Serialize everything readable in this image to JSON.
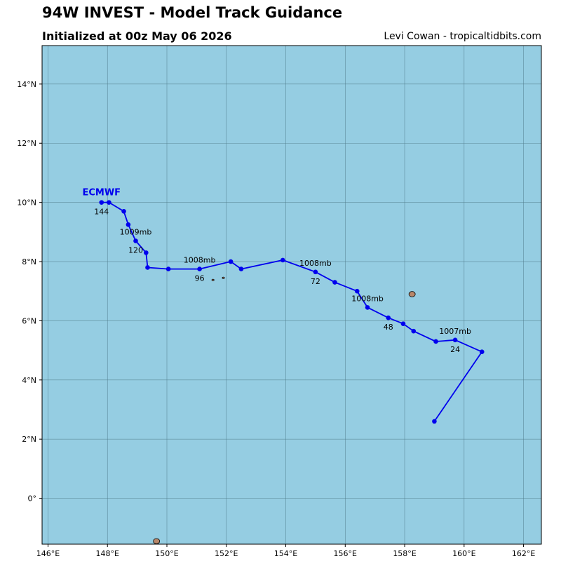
{
  "header": {
    "title": "94W INVEST - Model Track Guidance",
    "subtitle": "Initialized at 00z May 06 2026",
    "credit": "Levi Cowan - tropicaltidbits.com"
  },
  "colors": {
    "ocean": "#95cde2",
    "land": "#b8876a",
    "track": "#0000ee",
    "grid": "#4f7b8a",
    "model_label": "#0000ee"
  },
  "chart_data": {
    "type": "map-track",
    "lon_range": [
      145.8,
      162.6
    ],
    "lat_range": [
      -1.55,
      15.3
    ],
    "lon_ticks": [
      {
        "value": 146,
        "label": "146°E"
      },
      {
        "value": 148,
        "label": "148°E"
      },
      {
        "value": 150,
        "label": "150°E"
      },
      {
        "value": 152,
        "label": "152°E"
      },
      {
        "value": 154,
        "label": "154°E"
      },
      {
        "value": 156,
        "label": "156°E"
      },
      {
        "value": 158,
        "label": "158°E"
      },
      {
        "value": 160,
        "label": "160°E"
      },
      {
        "value": 162,
        "label": "162°E"
      }
    ],
    "lat_ticks": [
      {
        "value": 0,
        "label": "0°"
      },
      {
        "value": 2,
        "label": "2°N"
      },
      {
        "value": 4,
        "label": "4°N"
      },
      {
        "value": 6,
        "label": "6°N"
      },
      {
        "value": 8,
        "label": "8°N"
      },
      {
        "value": 10,
        "label": "10°N"
      },
      {
        "value": 12,
        "label": "12°N"
      },
      {
        "value": 14,
        "label": "14°N"
      }
    ],
    "grid": true,
    "model": {
      "name": "ECMWF",
      "track": [
        [
          159.0,
          2.6
        ],
        [
          160.6,
          4.95
        ],
        [
          159.7,
          5.35
        ],
        [
          159.05,
          5.3
        ],
        [
          158.3,
          5.65
        ],
        [
          157.95,
          5.9
        ],
        [
          157.45,
          6.1
        ],
        [
          156.75,
          6.45
        ],
        [
          156.4,
          7.0
        ],
        [
          155.65,
          7.3
        ],
        [
          155.0,
          7.65
        ],
        [
          153.9,
          8.05
        ],
        [
          152.5,
          7.75
        ],
        [
          152.15,
          8.0
        ],
        [
          151.1,
          7.75
        ],
        [
          150.05,
          7.75
        ],
        [
          149.35,
          7.8
        ],
        [
          149.3,
          8.3
        ],
        [
          148.95,
          8.7
        ],
        [
          148.7,
          9.25
        ],
        [
          148.55,
          9.7
        ],
        [
          148.05,
          10.0
        ],
        [
          147.8,
          10.0
        ]
      ],
      "hour_labels": [
        {
          "text": "24",
          "lon": 159.7,
          "lat": 5.35
        },
        {
          "text": "48",
          "lon": 157.45,
          "lat": 6.1
        },
        {
          "text": "72",
          "lon": 155.0,
          "lat": 7.65
        },
        {
          "text": "96",
          "lon": 151.1,
          "lat": 7.75
        },
        {
          "text": "120",
          "lon": 148.95,
          "lat": 8.7
        },
        {
          "text": "144",
          "lon": 147.8,
          "lat": 10.0
        }
      ],
      "pressure_labels": [
        {
          "text": "1007mb",
          "lon": 159.7,
          "lat": 5.35
        },
        {
          "text": "1008mb",
          "lon": 156.75,
          "lat": 6.45
        },
        {
          "text": "1008mb",
          "lon": 155.0,
          "lat": 7.65
        },
        {
          "text": "1008mb",
          "lon": 151.1,
          "lat": 7.75
        },
        {
          "text": "1009mb",
          "lon": 148.95,
          "lat": 8.7
        }
      ]
    },
    "islands": [
      {
        "lon": 158.25,
        "lat": 6.9
      },
      {
        "lon": 149.65,
        "lat": -1.45
      },
      {
        "lon": 151.55,
        "lat": 7.38
      },
      {
        "lon": 151.9,
        "lat": 7.45
      }
    ]
  }
}
